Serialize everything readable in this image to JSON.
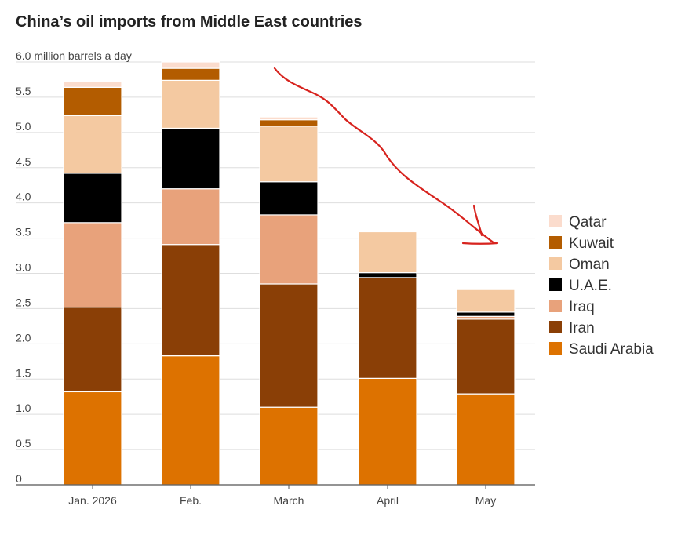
{
  "title": "China’s oil imports from Middle East countries",
  "chart_data": {
    "type": "bar",
    "stacked": true,
    "title": "China’s oil imports from Middle East countries",
    "unit_label": "6.0 million barrels a day",
    "ylim": [
      0,
      6.0
    ],
    "y_ticks": [
      "0",
      "0.5",
      "1.0",
      "1.5",
      "2.0",
      "2.5",
      "3.0",
      "3.5",
      "4.0",
      "4.5",
      "5.0",
      "5.5"
    ],
    "categories": [
      "Jan. 2026",
      "Feb.",
      "March",
      "April",
      "May"
    ],
    "series": [
      {
        "name": "Saudi Arabia",
        "color": "#dd7200",
        "values": [
          1.32,
          1.83,
          1.1,
          1.51,
          1.29
        ]
      },
      {
        "name": "Iran",
        "color": "#8a3f06",
        "values": [
          1.2,
          1.58,
          1.75,
          1.43,
          1.06
        ]
      },
      {
        "name": "Iraq",
        "color": "#e8a27b",
        "values": [
          1.2,
          0.79,
          0.98,
          0.0,
          0.04
        ]
      },
      {
        "name": "U.A.E.",
        "color": "#000000",
        "values": [
          0.7,
          0.86,
          0.47,
          0.07,
          0.06
        ]
      },
      {
        "name": "Oman",
        "color": "#f4c9a1",
        "values": [
          0.82,
          0.68,
          0.79,
          0.58,
          0.32
        ]
      },
      {
        "name": "Kuwait",
        "color": "#b35c00",
        "values": [
          0.4,
          0.17,
          0.09,
          0.0,
          0.0
        ]
      },
      {
        "name": "Qatar",
        "color": "#fbdccd",
        "values": [
          0.08,
          0.09,
          0.04,
          0.0,
          0.0
        ]
      }
    ],
    "legend_order": [
      "Qatar",
      "Kuwait",
      "Oman",
      "U.A.E.",
      "Iraq",
      "Iran",
      "Saudi Arabia"
    ],
    "legend_position": "right",
    "grid": true,
    "annotation": "red hand-drawn arrow pointing down-right from March toward May"
  }
}
